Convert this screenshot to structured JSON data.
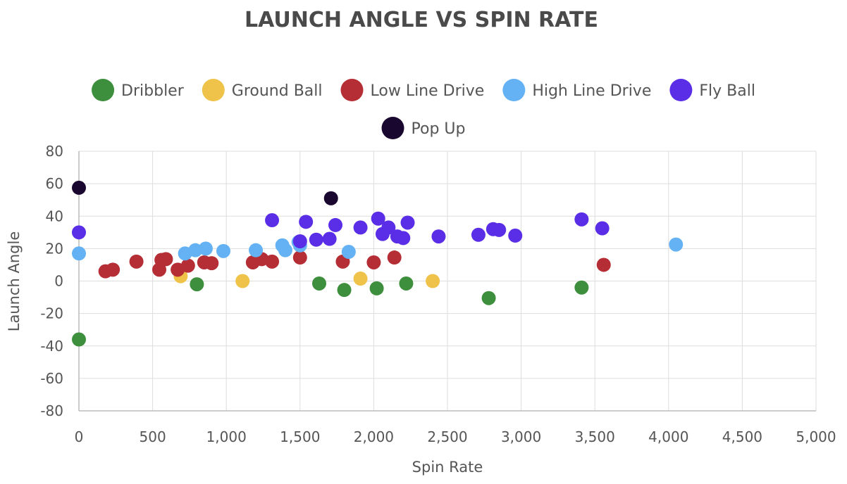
{
  "chart_data": {
    "type": "scatter",
    "title": "LAUNCH ANGLE VS SPIN RATE",
    "xlabel": "Spin Rate",
    "ylabel": "Launch Angle",
    "xlim": [
      0,
      5000
    ],
    "ylim": [
      -80,
      80
    ],
    "x_ticks": [
      0,
      500,
      1000,
      1500,
      2000,
      2500,
      3000,
      3500,
      4000,
      4500,
      5000
    ],
    "x_tick_labels": [
      "0",
      "500",
      "1,000",
      "1,500",
      "2,000",
      "2,500",
      "3,000",
      "3,500",
      "4,000",
      "4,500",
      "5,000"
    ],
    "y_ticks": [
      80,
      60,
      40,
      20,
      0,
      -20,
      -40,
      -60,
      -80
    ],
    "y_tick_labels": [
      "80",
      "60",
      "40",
      "20",
      "0",
      "-20",
      "-40",
      "-60",
      "-80"
    ],
    "grid": true,
    "legend_position": "top",
    "series": [
      {
        "name": "Dribbler",
        "color": "#3d8f3d",
        "points": [
          [
            0,
            -36
          ],
          [
            800,
            -2
          ],
          [
            1630,
            -1.5
          ],
          [
            1800,
            -5.5
          ],
          [
            2020,
            -4.5
          ],
          [
            2220,
            -1.5
          ],
          [
            2780,
            -10.5
          ],
          [
            3410,
            -4
          ]
        ]
      },
      {
        "name": "Ground Ball",
        "color": "#efc24a",
        "points": [
          [
            690,
            3
          ],
          [
            1110,
            0
          ],
          [
            1910,
            1.5
          ],
          [
            2400,
            0
          ]
        ]
      },
      {
        "name": "Low Line Drive",
        "color": "#b52d35",
        "points": [
          [
            180,
            6
          ],
          [
            230,
            7
          ],
          [
            390,
            12
          ],
          [
            545,
            7
          ],
          [
            560,
            13
          ],
          [
            590,
            13.5
          ],
          [
            670,
            7
          ],
          [
            740,
            9.5
          ],
          [
            850,
            11.5
          ],
          [
            900,
            11
          ],
          [
            1180,
            11.5
          ],
          [
            1240,
            13.5
          ],
          [
            1310,
            12
          ],
          [
            1500,
            14.5
          ],
          [
            1790,
            12
          ],
          [
            2000,
            11.5
          ],
          [
            2140,
            14.5
          ],
          [
            3560,
            10
          ]
        ]
      },
      {
        "name": "High Line Drive",
        "color": "#64b2f4",
        "points": [
          [
            0,
            17
          ],
          [
            720,
            17
          ],
          [
            790,
            19
          ],
          [
            860,
            20
          ],
          [
            980,
            18.5
          ],
          [
            1200,
            19
          ],
          [
            1380,
            22
          ],
          [
            1400,
            19
          ],
          [
            1490,
            24
          ],
          [
            1500,
            22
          ],
          [
            1830,
            18
          ],
          [
            4050,
            22.5
          ]
        ]
      },
      {
        "name": "Fly Ball",
        "color": "#5a2ee6",
        "points": [
          [
            0,
            30
          ],
          [
            1310,
            37.5
          ],
          [
            1500,
            24.5
          ],
          [
            1540,
            36.5
          ],
          [
            1610,
            25.5
          ],
          [
            1700,
            26
          ],
          [
            1740,
            34.5
          ],
          [
            1910,
            33
          ],
          [
            2030,
            38.5
          ],
          [
            2060,
            29
          ],
          [
            2100,
            33
          ],
          [
            2160,
            27.5
          ],
          [
            2200,
            26.5
          ],
          [
            2230,
            36
          ],
          [
            2440,
            27.5
          ],
          [
            2710,
            28.5
          ],
          [
            2810,
            32
          ],
          [
            2850,
            31.5
          ],
          [
            2960,
            28
          ],
          [
            3410,
            38
          ],
          [
            3550,
            32.5
          ]
        ]
      },
      {
        "name": "Pop Up",
        "color": "#1a0730",
        "points": [
          [
            0,
            57.5
          ],
          [
            1710,
            51
          ]
        ]
      }
    ]
  }
}
